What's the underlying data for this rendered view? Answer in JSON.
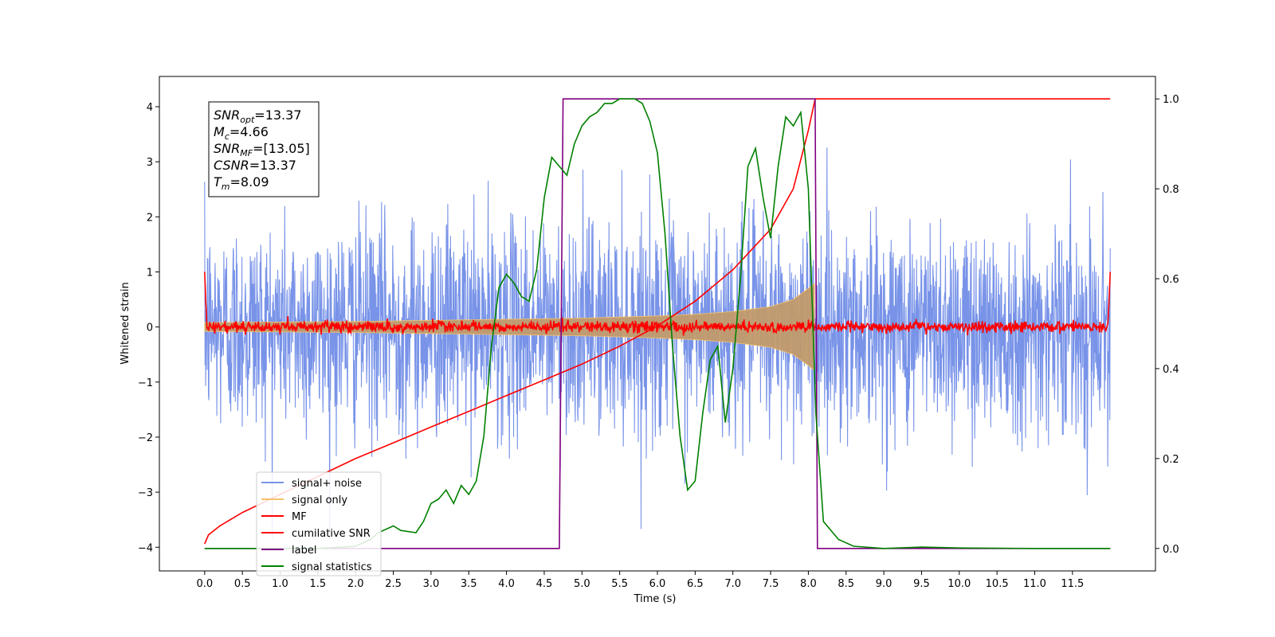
{
  "chart_data": {
    "type": "line",
    "xlabel": "Time (s)",
    "ylabel": "Whitened strain",
    "xlim": [
      -0.6,
      12.6
    ],
    "ylim": [
      -4.43,
      4.55
    ],
    "ylim_right": [
      -0.05,
      1.05
    ],
    "grid": false,
    "legend_position": "lower-left",
    "x_ticks": [
      "0.0",
      "0.5",
      "1.0",
      "1.5",
      "2.0",
      "2.5",
      "3.0",
      "3.5",
      "4.0",
      "4.5",
      "5.0",
      "5.5",
      "6.0",
      "6.5",
      "7.0",
      "7.5",
      "8.0",
      "8.5",
      "9.0",
      "9.5",
      "10.0",
      "10.5",
      "11.0",
      "11.5"
    ],
    "y_ticks_left": [
      "4",
      "3",
      "2",
      "1",
      "0",
      "−1",
      "−2",
      "−3",
      "−4"
    ],
    "y_ticks_right": [
      "1.0",
      "0.8",
      "0.6",
      "0.4",
      "0.2",
      "0.0"
    ],
    "info_box": {
      "lines": [
        {
          "sym": "SNR",
          "sub": "opt",
          "val": "=13.37"
        },
        {
          "sym": "M",
          "sub": "c",
          "val": "=4.66"
        },
        {
          "sym": "SNR",
          "sub": "MF",
          "val": "=[13.05]"
        },
        {
          "sym": "CSNR",
          "sub": "",
          "val": "=13.37"
        },
        {
          "sym": "T",
          "sub": "m",
          "val": "=8.09"
        }
      ]
    },
    "series": [
      {
        "name": "signal+ noise",
        "color": "#7893e8",
        "axis": "left",
        "description_values": {
          "x_start": 0.0,
          "x_end": 12.0,
          "noise_sigma": 0.95
        }
      },
      {
        "name": "signal only",
        "color": "#f5c26b",
        "axis": "left",
        "fill_color": "#c29a6b",
        "envelope_x": [
          0.0,
          1.0,
          2.0,
          3.0,
          4.0,
          5.0,
          6.0,
          6.5,
          7.0,
          7.5,
          7.8,
          8.0,
          8.09
        ],
        "envelope_y": [
          0.08,
          0.09,
          0.1,
          0.12,
          0.14,
          0.16,
          0.2,
          0.23,
          0.28,
          0.37,
          0.5,
          0.7,
          0.8
        ]
      },
      {
        "name": "MF",
        "color": "#ff0000",
        "axis": "left",
        "description_values": {
          "level": 0.0,
          "spread": 0.1,
          "edge_value": 1.0
        }
      },
      {
        "name": "cumilative SNR",
        "color": "#ff0000",
        "axis": "right",
        "x": [
          0.0,
          0.05,
          0.2,
          0.5,
          1.0,
          1.5,
          2.0,
          2.5,
          3.0,
          3.5,
          4.0,
          4.5,
          5.0,
          5.5,
          6.0,
          6.5,
          7.0,
          7.5,
          7.8,
          8.0,
          8.09,
          12.0
        ],
        "y": [
          0.01,
          0.03,
          0.05,
          0.08,
          0.12,
          0.16,
          0.2,
          0.235,
          0.27,
          0.305,
          0.34,
          0.375,
          0.41,
          0.45,
          0.495,
          0.55,
          0.62,
          0.71,
          0.8,
          0.93,
          1.0,
          1.0
        ]
      },
      {
        "name": "label",
        "color": "#800080",
        "axis": "right",
        "x": [
          0.0,
          4.7,
          4.75,
          8.09,
          8.12,
          12.0
        ],
        "y": [
          0.0,
          0.0,
          1.0,
          1.0,
          0.0,
          0.0
        ]
      },
      {
        "name": "signal statistics",
        "color": "#008000",
        "axis": "right",
        "x": [
          0.0,
          1.0,
          1.5,
          2.0,
          2.2,
          2.3,
          2.5,
          2.6,
          2.8,
          2.9,
          3.0,
          3.1,
          3.2,
          3.3,
          3.4,
          3.5,
          3.6,
          3.7,
          3.8,
          3.9,
          4.0,
          4.1,
          4.2,
          4.3,
          4.4,
          4.5,
          4.6,
          4.7,
          4.8,
          4.9,
          5.0,
          5.1,
          5.2,
          5.3,
          5.4,
          5.5,
          5.6,
          5.7,
          5.8,
          5.9,
          6.0,
          6.1,
          6.2,
          6.3,
          6.4,
          6.5,
          6.6,
          6.7,
          6.8,
          6.9,
          7.0,
          7.1,
          7.2,
          7.3,
          7.4,
          7.5,
          7.6,
          7.7,
          7.8,
          7.9,
          8.0,
          8.1,
          8.2,
          8.4,
          8.6,
          9.0,
          9.5,
          10.0,
          11.0,
          12.0
        ],
        "y": [
          0.0,
          0.0,
          0.0,
          0.005,
          0.02,
          0.035,
          0.05,
          0.04,
          0.035,
          0.06,
          0.1,
          0.11,
          0.13,
          0.1,
          0.14,
          0.12,
          0.15,
          0.25,
          0.45,
          0.58,
          0.61,
          0.59,
          0.56,
          0.55,
          0.62,
          0.78,
          0.87,
          0.85,
          0.83,
          0.9,
          0.94,
          0.96,
          0.97,
          0.99,
          0.99,
          1.0,
          1.0,
          1.0,
          0.99,
          0.95,
          0.88,
          0.7,
          0.45,
          0.25,
          0.13,
          0.15,
          0.3,
          0.42,
          0.45,
          0.28,
          0.4,
          0.6,
          0.85,
          0.89,
          0.78,
          0.69,
          0.85,
          0.96,
          0.94,
          0.97,
          0.8,
          0.3,
          0.06,
          0.02,
          0.005,
          0.0,
          0.003,
          0.001,
          0.0,
          0.0
        ]
      }
    ]
  }
}
